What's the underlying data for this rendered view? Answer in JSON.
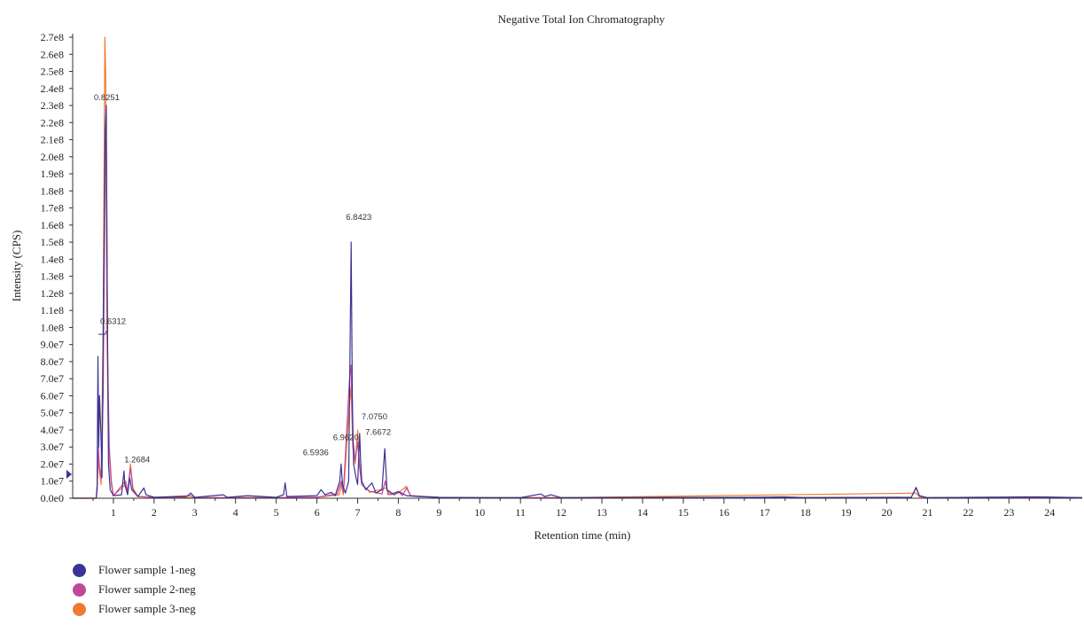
{
  "chart_data": {
    "type": "line",
    "title": "Negative Total Ion Chromatography",
    "xlabel": "Retention time (min)",
    "ylabel": "Intensity (CPS)",
    "xlim": [
      0,
      24.8
    ],
    "ylim": [
      0,
      270000000
    ],
    "x_ticks": [
      1,
      2,
      3,
      4,
      5,
      6,
      7,
      8,
      9,
      10,
      11,
      12,
      13,
      14,
      15,
      16,
      17,
      18,
      19,
      20,
      21,
      22,
      23,
      24
    ],
    "y_ticks": [
      {
        "value": 0,
        "label": "0.0e0"
      },
      {
        "value": 10000000,
        "label": "1.0e7"
      },
      {
        "value": 20000000,
        "label": "2.0e7"
      },
      {
        "value": 30000000,
        "label": "3.0e7"
      },
      {
        "value": 40000000,
        "label": "4.0e7"
      },
      {
        "value": 50000000,
        "label": "5.0e7"
      },
      {
        "value": 60000000,
        "label": "6.0e7"
      },
      {
        "value": 70000000,
        "label": "7.0e7"
      },
      {
        "value": 80000000,
        "label": "8.0e7"
      },
      {
        "value": 90000000,
        "label": "9.0e7"
      },
      {
        "value": 100000000,
        "label": "1.0e8"
      },
      {
        "value": 110000000,
        "label": "1.1e8"
      },
      {
        "value": 120000000,
        "label": "1.2e8"
      },
      {
        "value": 130000000,
        "label": "1.3e8"
      },
      {
        "value": 140000000,
        "label": "1.4e8"
      },
      {
        "value": 150000000,
        "label": "1.5e8"
      },
      {
        "value": 160000000,
        "label": "1.6e8"
      },
      {
        "value": 170000000,
        "label": "1.7e8"
      },
      {
        "value": 180000000,
        "label": "1.8e8"
      },
      {
        "value": 190000000,
        "label": "1.9e8"
      },
      {
        "value": 200000000,
        "label": "2.0e8"
      },
      {
        "value": 210000000,
        "label": "2.1e8"
      },
      {
        "value": 220000000,
        "label": "2.2e8"
      },
      {
        "value": 230000000,
        "label": "2.3e8"
      },
      {
        "value": 240000000,
        "label": "2.4e8"
      },
      {
        "value": 250000000,
        "label": "2.5e8"
      },
      {
        "value": 260000000,
        "label": "2.6e8"
      },
      {
        "value": 270000000,
        "label": "2.7e8"
      }
    ],
    "grid": false,
    "legend_placement": "bottom-left",
    "series": [
      {
        "name": "Flower sample 1-neg",
        "color": "#3b3494",
        "points": [
          [
            0,
            0
          ],
          [
            0.58,
            0
          ],
          [
            0.6,
            8000000
          ],
          [
            0.62,
            83000000
          ],
          [
            0.64,
            30000000
          ],
          [
            0.66,
            60000000
          ],
          [
            0.69,
            40000000
          ],
          [
            0.72,
            12000000
          ],
          [
            0.76,
            125000000
          ],
          [
            0.8,
            215000000
          ],
          [
            0.8251,
            230000000
          ],
          [
            0.85,
            120000000
          ],
          [
            0.88,
            20000000
          ],
          [
            0.92,
            5000000
          ],
          [
            1.0,
            1500000
          ],
          [
            1.2,
            2000000
          ],
          [
            1.26,
            16000000
          ],
          [
            1.28,
            8000000
          ],
          [
            1.35,
            2000000
          ],
          [
            1.4,
            12000000
          ],
          [
            1.45,
            5000000
          ],
          [
            1.6,
            1000000
          ],
          [
            1.75,
            6000000
          ],
          [
            1.8,
            2000000
          ],
          [
            2.0,
            500000
          ],
          [
            2.8,
            1000000
          ],
          [
            2.9,
            3000000
          ],
          [
            3.0,
            500000
          ],
          [
            3.7,
            2000000
          ],
          [
            3.8,
            500000
          ],
          [
            4.3,
            1500000
          ],
          [
            5.0,
            500000
          ],
          [
            5.18,
            2000000
          ],
          [
            5.22,
            9000000
          ],
          [
            5.26,
            1000000
          ],
          [
            6.0,
            1500000
          ],
          [
            6.1,
            5000000
          ],
          [
            6.2,
            2000000
          ],
          [
            6.35,
            3500000
          ],
          [
            6.45,
            1500000
          ],
          [
            6.56,
            10000000
          ],
          [
            6.5936,
            20000000
          ],
          [
            6.63,
            8000000
          ],
          [
            6.7,
            3000000
          ],
          [
            6.78,
            10000000
          ],
          [
            6.81,
            80000000
          ],
          [
            6.8423,
            150000000
          ],
          [
            6.87,
            60000000
          ],
          [
            6.9,
            20000000
          ],
          [
            6.962,
            12000000
          ],
          [
            7.0,
            8000000
          ],
          [
            7.05,
            38000000
          ],
          [
            7.075,
            22000000
          ],
          [
            7.1,
            10000000
          ],
          [
            7.2,
            5000000
          ],
          [
            7.35,
            9000000
          ],
          [
            7.45,
            3000000
          ],
          [
            7.6,
            5000000
          ],
          [
            7.6672,
            29000000
          ],
          [
            7.72,
            5000000
          ],
          [
            7.9,
            2000000
          ],
          [
            8.0,
            4000000
          ],
          [
            8.2,
            1500000
          ],
          [
            8.5,
            1000000
          ],
          [
            9.0,
            500000
          ],
          [
            10.0,
            300000
          ],
          [
            11.0,
            300000
          ],
          [
            11.5,
            2500000
          ],
          [
            11.6,
            1000000
          ],
          [
            11.75,
            2000000
          ],
          [
            12.0,
            300000
          ],
          [
            16.6,
            500000
          ],
          [
            17.5,
            800000
          ],
          [
            18.0,
            300000
          ],
          [
            20.6,
            500000
          ],
          [
            20.72,
            6000000
          ],
          [
            20.8,
            1500000
          ],
          [
            21.0,
            300000
          ],
          [
            23.3,
            800000
          ],
          [
            23.8,
            800000
          ],
          [
            24.8,
            300000
          ]
        ]
      },
      {
        "name": "Flower sample 2-neg",
        "color": "#c0479a",
        "points": [
          [
            0,
            0
          ],
          [
            0.58,
            0
          ],
          [
            0.6,
            5000000
          ],
          [
            0.63,
            30000000
          ],
          [
            0.66,
            18000000
          ],
          [
            0.7,
            12000000
          ],
          [
            0.75,
            60000000
          ],
          [
            0.8,
            200000000
          ],
          [
            0.8251,
            210000000
          ],
          [
            0.86,
            80000000
          ],
          [
            0.9,
            30000000
          ],
          [
            0.95,
            10000000
          ],
          [
            1.0,
            1500000
          ],
          [
            1.3,
            10000000
          ],
          [
            1.35,
            4000000
          ],
          [
            1.42,
            18000000
          ],
          [
            1.48,
            5000000
          ],
          [
            1.6,
            1000000
          ],
          [
            2.0,
            500000
          ],
          [
            2.9,
            1500000
          ],
          [
            3.0,
            300000
          ],
          [
            5.0,
            300000
          ],
          [
            6.0,
            600000
          ],
          [
            6.5,
            2500000
          ],
          [
            6.6,
            10000000
          ],
          [
            6.65,
            3000000
          ],
          [
            6.8,
            70000000
          ],
          [
            6.84,
            78000000
          ],
          [
            6.88,
            35000000
          ],
          [
            6.94,
            22000000
          ],
          [
            7.0,
            33000000
          ],
          [
            7.05,
            18000000
          ],
          [
            7.1,
            8000000
          ],
          [
            7.3,
            4000000
          ],
          [
            7.6,
            2500000
          ],
          [
            7.68,
            10000000
          ],
          [
            7.75,
            2000000
          ],
          [
            8.0,
            4000000
          ],
          [
            8.1,
            1500000
          ],
          [
            8.2,
            6000000
          ],
          [
            8.3,
            1500000
          ],
          [
            9.0,
            500000
          ],
          [
            10.0,
            300000
          ],
          [
            12.0,
            300000
          ],
          [
            20.6,
            500000
          ],
          [
            20.72,
            6500000
          ],
          [
            20.8,
            1200000
          ],
          [
            21.0,
            300000
          ],
          [
            24.8,
            300000
          ]
        ]
      },
      {
        "name": "Flower sample 3-neg",
        "color": "#f07a32",
        "points": [
          [
            0,
            0
          ],
          [
            0.58,
            0
          ],
          [
            0.6,
            5000000
          ],
          [
            0.63,
            25000000
          ],
          [
            0.66,
            15000000
          ],
          [
            0.7,
            8000000
          ],
          [
            0.75,
            100000000
          ],
          [
            0.79,
            270000000
          ],
          [
            0.81,
            250000000
          ],
          [
            0.84,
            100000000
          ],
          [
            0.88,
            30000000
          ],
          [
            0.95,
            8000000
          ],
          [
            1.0,
            1500000
          ],
          [
            1.3,
            8000000
          ],
          [
            1.35,
            3000000
          ],
          [
            1.42,
            20000000
          ],
          [
            1.48,
            6000000
          ],
          [
            1.6,
            1000000
          ],
          [
            2.0,
            500000
          ],
          [
            3.0,
            300000
          ],
          [
            5.0,
            300000
          ],
          [
            6.0,
            500000
          ],
          [
            6.55,
            2000000
          ],
          [
            6.6,
            8000000
          ],
          [
            6.65,
            2000000
          ],
          [
            6.8,
            55000000
          ],
          [
            6.84,
            65000000
          ],
          [
            6.88,
            30000000
          ],
          [
            6.94,
            20000000
          ],
          [
            7.0,
            40000000
          ],
          [
            7.05,
            18000000
          ],
          [
            7.1,
            8000000
          ],
          [
            7.3,
            3500000
          ],
          [
            7.7,
            6000000
          ],
          [
            7.8,
            2000000
          ],
          [
            8.0,
            3000000
          ],
          [
            8.2,
            7000000
          ],
          [
            8.3,
            1500000
          ],
          [
            9.0,
            500000
          ],
          [
            10.0,
            300000
          ],
          [
            12.0,
            300000
          ],
          [
            20.72,
            3000000
          ],
          [
            20.8,
            800000
          ],
          [
            21.0,
            300000
          ],
          [
            24.8,
            300000
          ]
        ]
      }
    ],
    "annotations": [
      {
        "label": "0.8251",
        "x": 0.8251,
        "y": 230000000
      },
      {
        "label": "0.6312",
        "x": 0.6312,
        "y": 100000000
      },
      {
        "label": "1.2684",
        "x": 1.2684,
        "y": 18000000
      },
      {
        "label": "6.8423",
        "x": 6.8423,
        "y": 160000000
      },
      {
        "label": "7.0750",
        "x": 7.075,
        "y": 41000000
      },
      {
        "label": "7.6672",
        "x": 7.6672,
        "y": 32000000
      },
      {
        "label": "6.9620",
        "x": 6.962,
        "y": 32000000
      },
      {
        "label": "6.5936",
        "x": 6.5936,
        "y": 22000000
      }
    ]
  },
  "legend": {
    "items": [
      {
        "label": "Flower sample 1-neg",
        "color": "#3b3494"
      },
      {
        "label": "Flower sample 2-neg",
        "color": "#c0479a"
      },
      {
        "label": "Flower sample 3-neg",
        "color": "#f07a32"
      }
    ]
  }
}
